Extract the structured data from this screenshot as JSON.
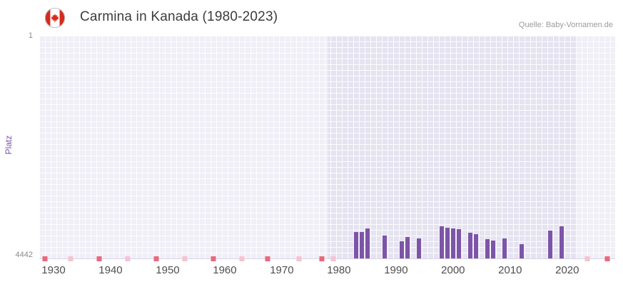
{
  "header": {
    "title": "Carmina in Kanada (1980-2023)",
    "source": "Quelle: Baby-Vornamen.de",
    "flag_icon": "canada-flag"
  },
  "chart_data": {
    "type": "bar",
    "title": "Carmina in Kanada (1980-2023)",
    "ylabel": "Platz",
    "y_axis": {
      "tick_labels": [
        "1",
        "4442"
      ],
      "min": 1,
      "max": 4442,
      "inverted": true
    },
    "x_axis": {
      "range": [
        1927.5,
        2028.4
      ],
      "tick_years": [
        1930,
        1940,
        1950,
        1960,
        1970,
        1980,
        1990,
        2000,
        2010,
        2020
      ]
    },
    "active_band_years": [
      1978,
      2021.6
    ],
    "bars": [
      {
        "year": 1983,
        "rank": 3920
      },
      {
        "year": 1984,
        "rank": 3915
      },
      {
        "year": 1985,
        "rank": 3845
      },
      {
        "year": 1988,
        "rank": 3990
      },
      {
        "year": 1991,
        "rank": 4105
      },
      {
        "year": 1992,
        "rank": 4010
      },
      {
        "year": 1994,
        "rank": 4040
      },
      {
        "year": 1998,
        "rank": 3795
      },
      {
        "year": 1999,
        "rank": 3825
      },
      {
        "year": 2000,
        "rank": 3850
      },
      {
        "year": 2001,
        "rank": 3855
      },
      {
        "year": 2003,
        "rank": 3935
      },
      {
        "year": 2004,
        "rank": 3960
      },
      {
        "year": 2006,
        "rank": 4055
      },
      {
        "year": 2007,
        "rank": 4085
      },
      {
        "year": 2009,
        "rank": 4050
      },
      {
        "year": 2012,
        "rank": 4150
      },
      {
        "year": 2017,
        "rank": 3885
      },
      {
        "year": 2019,
        "rank": 3795
      }
    ],
    "baseline_markers": {
      "red_years": [
        1928.5,
        1938,
        1948,
        1958,
        1967.5,
        1977,
        2027
      ],
      "pink_years": [
        1933,
        1943,
        1953,
        1963,
        1973,
        1979,
        2023.5
      ]
    },
    "colors": {
      "bar": "#7d55a8",
      "plot_background": "#e6e3f1",
      "grid_line": "#ffffff",
      "marker_red": "#e8697d",
      "marker_pink": "#f5c3d1",
      "axis_title": "#7a58a8",
      "flag_red": "#d52b1e"
    }
  }
}
